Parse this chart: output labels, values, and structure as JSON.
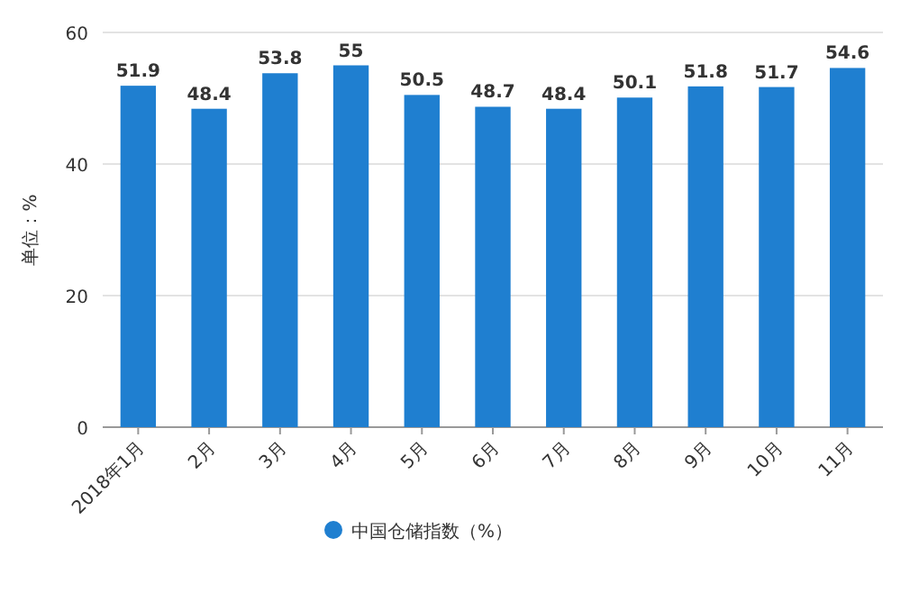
{
  "chart_data": {
    "type": "bar",
    "ylabel": "单位：%",
    "categories": [
      "2018年1月",
      "2月",
      "3月",
      "4月",
      "5月",
      "6月",
      "7月",
      "8月",
      "9月",
      "10月",
      "11月"
    ],
    "series": [
      {
        "name": "中国仓储指数（%）",
        "color": "#1f7fd0",
        "values": [
          51.9,
          48.4,
          53.8,
          55,
          50.5,
          48.7,
          48.4,
          50.1,
          51.8,
          51.7,
          54.6
        ]
      }
    ],
    "ylim": [
      0,
      60
    ],
    "yticks": [
      0,
      20,
      40,
      60
    ],
    "grid": "y",
    "data_labels": true,
    "legend": "bottom",
    "marker": "circle"
  }
}
